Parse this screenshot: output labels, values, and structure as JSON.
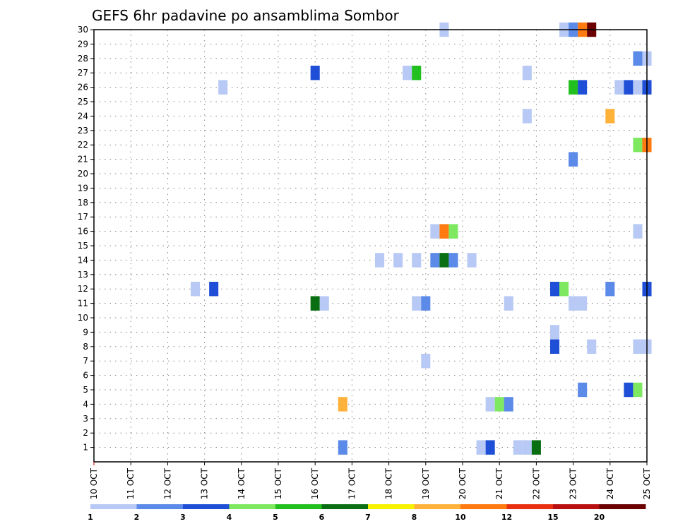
{
  "chart_data": {
    "type": "heatmap",
    "title": "GEFS 6hr padavine po ansamblima Sombor",
    "xlabel": "",
    "ylabel": "",
    "x_tick_labels": [
      "10 OCT",
      "11 OCT",
      "12 OCT",
      "13 OCT",
      "14 OCT",
      "15 OCT",
      "16 OCT",
      "17 OCT",
      "18 OCT",
      "19 OCT",
      "20 OCT",
      "21 OCT",
      "22 OCT",
      "23 OCT",
      "24 OCT",
      "25 OCT"
    ],
    "x_range_hours": [
      0,
      360
    ],
    "y_tick_labels": [
      "1",
      "2",
      "3",
      "4",
      "5",
      "6",
      "7",
      "8",
      "9",
      "10",
      "11",
      "12",
      "13",
      "14",
      "15",
      "16",
      "17",
      "18",
      "19",
      "20",
      "21",
      "22",
      "23",
      "24",
      "25",
      "26",
      "27",
      "28",
      "29",
      "30"
    ],
    "y_range": [
      0,
      30
    ],
    "grid": true,
    "colorbar": {
      "labels": [
        "1",
        "2",
        "3",
        "4",
        "5",
        "6",
        "7",
        "8",
        "10",
        "12",
        "15",
        "20"
      ],
      "colors": [
        "#b7c9f4",
        "#5b8ae8",
        "#1f4fd6",
        "#7de860",
        "#22c01e",
        "#0a6e12",
        "#f8f200",
        "#ffb23a",
        "#ff7a10",
        "#e83010",
        "#b81010",
        "#6a0000"
      ]
    },
    "cells": [
      {
        "member": 30,
        "hour": 228,
        "cat": 1
      },
      {
        "member": 30,
        "hour": 306,
        "cat": 1
      },
      {
        "member": 30,
        "hour": 312,
        "cat": 2
      },
      {
        "member": 30,
        "hour": 318,
        "cat": 9
      },
      {
        "member": 30,
        "hour": 324,
        "cat": 12
      },
      {
        "member": 28,
        "hour": 354,
        "cat": 2
      },
      {
        "member": 28,
        "hour": 360,
        "cat": 1
      },
      {
        "member": 27,
        "hour": 144,
        "cat": 3
      },
      {
        "member": 27,
        "hour": 204,
        "cat": 1
      },
      {
        "member": 27,
        "hour": 210,
        "cat": 5
      },
      {
        "member": 27,
        "hour": 282,
        "cat": 1
      },
      {
        "member": 26,
        "hour": 84,
        "cat": 1
      },
      {
        "member": 26,
        "hour": 312,
        "cat": 5
      },
      {
        "member": 26,
        "hour": 318,
        "cat": 3
      },
      {
        "member": 26,
        "hour": 342,
        "cat": 1
      },
      {
        "member": 26,
        "hour": 348,
        "cat": 3
      },
      {
        "member": 26,
        "hour": 354,
        "cat": 1
      },
      {
        "member": 26,
        "hour": 360,
        "cat": 3
      },
      {
        "member": 24,
        "hour": 282,
        "cat": 1
      },
      {
        "member": 24,
        "hour": 336,
        "cat": 8
      },
      {
        "member": 22,
        "hour": 354,
        "cat": 4
      },
      {
        "member": 22,
        "hour": 360,
        "cat": 9
      },
      {
        "member": 21,
        "hour": 312,
        "cat": 2
      },
      {
        "member": 16,
        "hour": 222,
        "cat": 1
      },
      {
        "member": 16,
        "hour": 228,
        "cat": 9
      },
      {
        "member": 16,
        "hour": 234,
        "cat": 4
      },
      {
        "member": 16,
        "hour": 354,
        "cat": 1
      },
      {
        "member": 14,
        "hour": 186,
        "cat": 1
      },
      {
        "member": 14,
        "hour": 198,
        "cat": 1
      },
      {
        "member": 14,
        "hour": 210,
        "cat": 1
      },
      {
        "member": 14,
        "hour": 222,
        "cat": 2
      },
      {
        "member": 14,
        "hour": 228,
        "cat": 6
      },
      {
        "member": 14,
        "hour": 234,
        "cat": 2
      },
      {
        "member": 14,
        "hour": 246,
        "cat": 1
      },
      {
        "member": 12,
        "hour": 66,
        "cat": 1
      },
      {
        "member": 12,
        "hour": 78,
        "cat": 3
      },
      {
        "member": 12,
        "hour": 300,
        "cat": 3
      },
      {
        "member": 12,
        "hour": 306,
        "cat": 4
      },
      {
        "member": 12,
        "hour": 336,
        "cat": 2
      },
      {
        "member": 12,
        "hour": 360,
        "cat": 3
      },
      {
        "member": 11,
        "hour": 144,
        "cat": 6
      },
      {
        "member": 11,
        "hour": 150,
        "cat": 1
      },
      {
        "member": 11,
        "hour": 210,
        "cat": 1
      },
      {
        "member": 11,
        "hour": 216,
        "cat": 2
      },
      {
        "member": 11,
        "hour": 270,
        "cat": 1
      },
      {
        "member": 11,
        "hour": 312,
        "cat": 1
      },
      {
        "member": 11,
        "hour": 318,
        "cat": 1
      },
      {
        "member": 9,
        "hour": 300,
        "cat": 1
      },
      {
        "member": 8,
        "hour": 300,
        "cat": 3
      },
      {
        "member": 8,
        "hour": 324,
        "cat": 1
      },
      {
        "member": 8,
        "hour": 354,
        "cat": 1
      },
      {
        "member": 8,
        "hour": 360,
        "cat": 1
      },
      {
        "member": 7,
        "hour": 216,
        "cat": 1
      },
      {
        "member": 5,
        "hour": 318,
        "cat": 2
      },
      {
        "member": 5,
        "hour": 348,
        "cat": 3
      },
      {
        "member": 5,
        "hour": 354,
        "cat": 4
      },
      {
        "member": 4,
        "hour": 162,
        "cat": 8
      },
      {
        "member": 4,
        "hour": 258,
        "cat": 1
      },
      {
        "member": 4,
        "hour": 264,
        "cat": 4
      },
      {
        "member": 4,
        "hour": 270,
        "cat": 2
      },
      {
        "member": 1,
        "hour": 162,
        "cat": 2
      },
      {
        "member": 1,
        "hour": 252,
        "cat": 1
      },
      {
        "member": 1,
        "hour": 258,
        "cat": 3
      },
      {
        "member": 1,
        "hour": 276,
        "cat": 1
      },
      {
        "member": 1,
        "hour": 282,
        "cat": 1
      },
      {
        "member": 1,
        "hour": 288,
        "cat": 6
      }
    ]
  }
}
